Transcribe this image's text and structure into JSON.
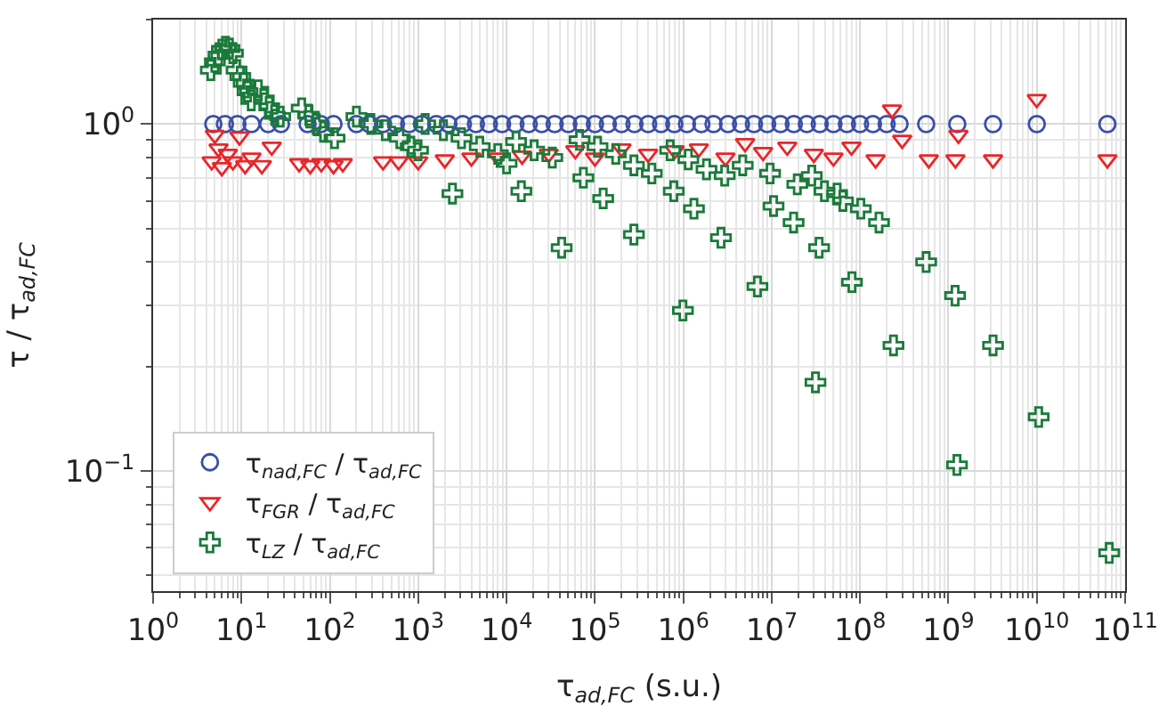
{
  "chart_data": {
    "type": "scatter",
    "xlabel": "τ$_{ad,FC}$ (s.u.)",
    "ylabel": "τ / τ$_{ad,FC}$",
    "log": "xy",
    "grid": true,
    "legend": "bottom left",
    "xlim": [
      1,
      100000000000.0
    ],
    "ylim": [
      0.045,
      2.0
    ],
    "xticks": [
      {
        "value": 1,
        "label": "10$^{0}$"
      },
      {
        "value": 10,
        "label": "10$^{1}$"
      },
      {
        "value": 100,
        "label": "10$^{2}$"
      },
      {
        "value": 1000,
        "label": "10$^{3}$"
      },
      {
        "value": 10000.0,
        "label": "10$^{4}$"
      },
      {
        "value": 100000.0,
        "label": "10$^{5}$"
      },
      {
        "value": 1000000.0,
        "label": "10$^{6}$"
      },
      {
        "value": 10000000.0,
        "label": "10$^{7}$"
      },
      {
        "value": 100000000.0,
        "label": "10$^{8}$"
      },
      {
        "value": 1000000000.0,
        "label": "10$^{9}$"
      },
      {
        "value": 10000000000.0,
        "label": "10$^{10}$"
      },
      {
        "value": 100000000000.0,
        "label": "10$^{11}$"
      }
    ],
    "yticks": [
      {
        "value": 0.1,
        "label": "10$^{−1}$"
      },
      {
        "value": 1,
        "label": "10$^{0}$"
      }
    ],
    "series": [
      {
        "name": "τ$_{nad,FC}$ / τ$_{ad,FC}$",
        "color": "#3a4fa8",
        "marker": "circle",
        "x": [
          4.8,
          6.5,
          9,
          13,
          20,
          28,
          56,
          79,
          110,
          200,
          280,
          400,
          560,
          790,
          1100,
          1600,
          2200,
          3200,
          4500,
          6300,
          8900,
          12600.0,
          17800.0,
          25000.0,
          35000.0,
          50000.0,
          71000.0,
          100000.0,
          140000.0,
          200000.0,
          280000.0,
          400000.0,
          560000.0,
          790000.0,
          1100000.0,
          1600000.0,
          2200000.0,
          3200000.0,
          4500000.0,
          6300000.0,
          8900000.0,
          12600000.0,
          17800000.0,
          25000000.0,
          35000000.0,
          50000000.0,
          71000000.0,
          100000000.0,
          140000000.0,
          200000000.0,
          280000000.0,
          560000000.0,
          1260000000.0,
          3200000000.0,
          10000000000.0,
          63000000000.0
        ],
        "values": [
          1.0,
          1.0,
          1.0,
          1.0,
          1.0,
          1.0,
          1.0,
          1.0,
          1.0,
          1.0,
          1.0,
          1.0,
          1.0,
          1.0,
          1.0,
          1.0,
          1.0,
          1.0,
          1.0,
          1.0,
          1.0,
          1.0,
          1.0,
          1.0,
          1.0,
          1.0,
          1.0,
          1.0,
          1.0,
          1.0,
          1.0,
          1.0,
          1.0,
          1.0,
          1.0,
          1.0,
          1.0,
          1.0,
          1.0,
          1.0,
          1.0,
          1.0,
          1.0,
          1.0,
          1.0,
          1.0,
          1.0,
          1.0,
          1.0,
          1.0,
          1.0,
          1.0,
          1.0,
          1.0,
          1.0,
          1.0
        ]
      },
      {
        "name": "τ$_{FGR}$ / τ$_{ad,FC}$",
        "color": "#e8262a",
        "marker": "triangle",
        "x": [
          4.6,
          5,
          5.5,
          6,
          7,
          8,
          9.5,
          11,
          13,
          17,
          22,
          45,
          60,
          80,
          110,
          140,
          400,
          600,
          1000,
          2000,
          4000,
          8000,
          15000.0,
          30000.0,
          60000.0,
          100000.0,
          200000.0,
          400000.0,
          800000.0,
          1500000.0,
          3000000.0,
          5000000.0,
          8000000.0,
          15000000.0,
          30000000.0,
          50000000.0,
          80000000.0,
          150000000.0,
          230000000.0,
          300000000.0,
          600000000.0,
          1200000000.0,
          1300000000.0,
          3200000000.0,
          10000000000.0,
          63000000000.0
        ],
        "values": [
          0.78,
          0.93,
          0.85,
          0.75,
          0.82,
          0.78,
          0.92,
          0.76,
          0.8,
          0.76,
          0.86,
          0.77,
          0.76,
          0.77,
          0.76,
          0.77,
          0.78,
          0.78,
          0.78,
          0.79,
          0.8,
          0.8,
          0.81,
          0.82,
          0.84,
          0.8,
          0.85,
          0.82,
          0.84,
          0.85,
          0.8,
          0.88,
          0.83,
          0.86,
          0.82,
          0.8,
          0.86,
          0.79,
          1.1,
          0.9,
          0.79,
          0.79,
          0.93,
          0.79,
          1.18,
          0.79
        ]
      },
      {
        "name": "τ$_{LZ}$ / τ$_{ad,FC}$",
        "color": "#1a7a3a",
        "marker": "cross",
        "x": [
          4.5,
          5.0,
          5.5,
          6.0,
          6.6,
          7.3,
          8.0,
          8.8,
          9.7,
          10.6,
          11.7,
          12.9,
          15.5,
          17.9,
          20.6,
          23.8,
          27.4,
          48,
          58,
          70,
          85,
          113,
          200,
          291,
          425,
          621,
          824,
          995,
          1200,
          1930,
          3090,
          4970,
          7960,
          10000.0,
          2440,
          12800.0,
          20500.0,
          32900.0,
          67000.0,
          107000.0,
          172000.0,
          276000.0,
          440000.0,
          710000.0,
          1140000.0,
          1830000.0,
          2940000.0,
          4700000.0,
          9600000.0,
          19500000.0,
          39600000.0,
          64000000.0,
          28400000.0,
          55000000.0,
          102000000.0,
          164000000.0,
          14700.0,
          42000.0,
          124000.0,
          276000.0,
          74000.0,
          780000.0,
          1320000.0,
          2670000.0,
          990000.0,
          6900000.0,
          10500000.0,
          17700000.0,
          34400000.0,
          31300000.0,
          81000000.0,
          239000000.0,
          560000000.0,
          1190000000.0,
          1250000000.0,
          3200000000.0,
          10500000000.0,
          66000000000.0
        ],
        "values": [
          1.43,
          1.51,
          1.58,
          1.64,
          1.67,
          1.65,
          1.6,
          1.43,
          1.37,
          1.31,
          1.24,
          1.17,
          1.25,
          1.18,
          1.12,
          1.06,
          1.05,
          1.11,
          1.06,
          1.0,
          0.95,
          0.91,
          1.05,
          1.0,
          0.96,
          0.91,
          0.86,
          0.84,
          1.0,
          0.96,
          0.91,
          0.86,
          0.82,
          0.77,
          0.63,
          0.89,
          0.84,
          0.8,
          0.9,
          0.86,
          0.82,
          0.76,
          0.72,
          0.84,
          0.79,
          0.74,
          0.71,
          0.76,
          0.72,
          0.67,
          0.64,
          0.6,
          0.71,
          0.63,
          0.57,
          0.52,
          0.64,
          0.44,
          0.61,
          0.48,
          0.7,
          0.64,
          0.57,
          0.47,
          0.29,
          0.34,
          0.58,
          0.52,
          0.44,
          0.18,
          0.35,
          0.23,
          0.4,
          0.32,
          0.104,
          0.23,
          0.143,
          0.058
        ]
      }
    ]
  }
}
